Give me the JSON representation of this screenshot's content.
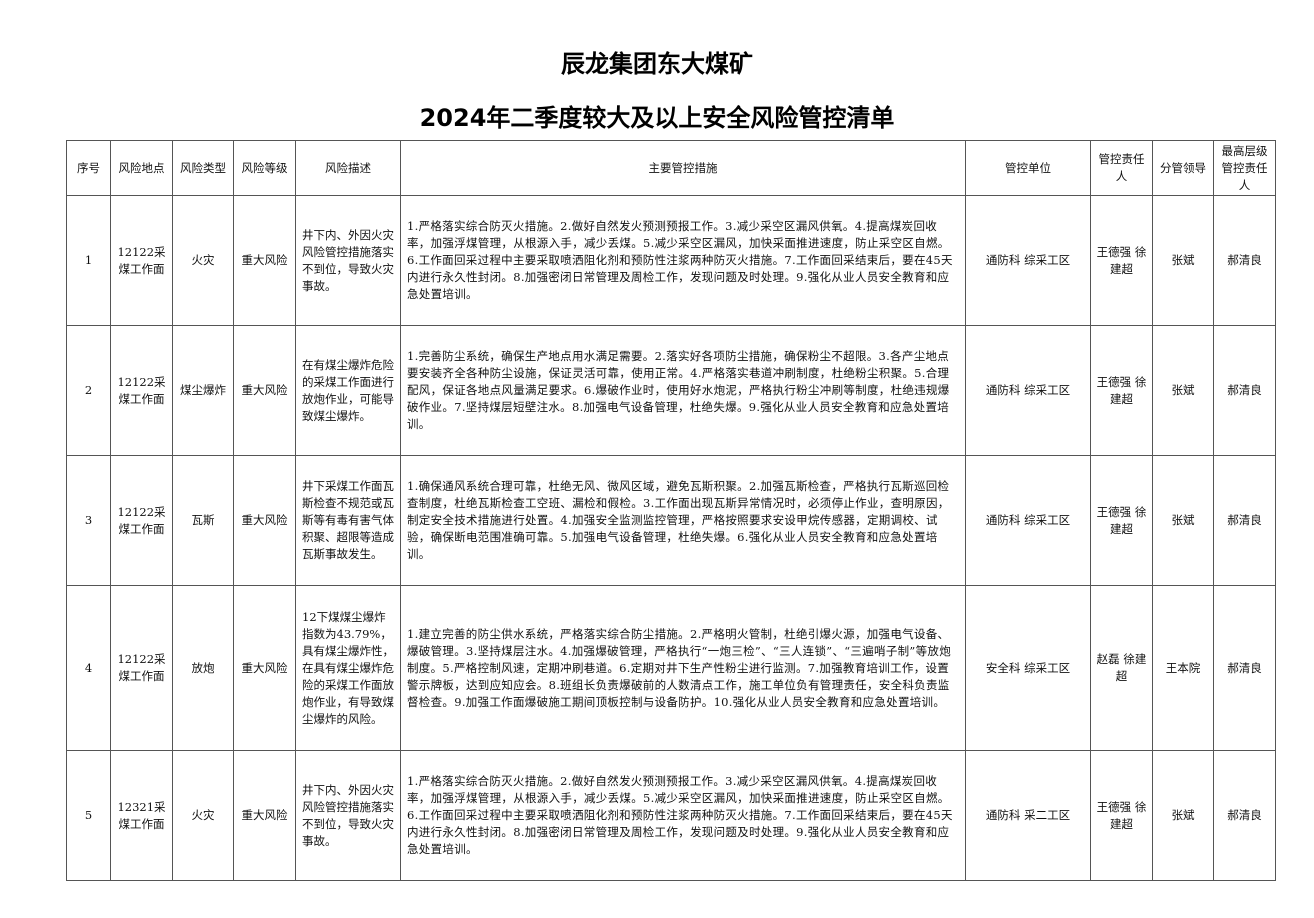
{
  "title_line1": "辰龙集团东大煤矿",
  "title_line2": "2024年二季度较大及以上安全风险管控清单",
  "headers": [
    "序号",
    "风险地点",
    "风险类型",
    "风险等级",
    "风险描述",
    "主要管控措施",
    "管控单位",
    "管控责任人",
    "分管领导",
    "最高层级管控责任人"
  ],
  "rows": [
    {
      "no": "1",
      "location": "12122采煤工作面",
      "type": "火灾",
      "level": "重大风险",
      "description": "井下内、外因火灾风险管控措施落实不到位，导致火灾事故。",
      "measures": "1.严格落实综合防灭火措施。2.做好自然发火预测预报工作。3.减少采空区漏风供氧。4.提高煤炭回收率，加强浮煤管理，从根源入手，减少丢煤。5.减少采空区漏风，加快采面推进速度，防止采空区自燃。6.工作面回采过程中主要采取喷洒阻化剂和预防性注浆两种防灭火措施。7.工作面回采结束后，要在45天内进行永久性封闭。8.加强密闭日常管理及周检工作，发现问题及时处理。9.强化从业人员安全教育和应急处置培训。",
      "unit": "通防科 综采工区",
      "responsible": "王德强 徐建超",
      "leader": "张斌",
      "top_responsible": "郝清良"
    },
    {
      "no": "2",
      "location": "12122采煤工作面",
      "type": "煤尘爆炸",
      "level": "重大风险",
      "description": "在有煤尘爆炸危险的采煤工作面进行放炮作业，可能导致煤尘爆炸。",
      "measures": "1.完善防尘系统，确保生产地点用水满足需要。2.落实好各项防尘措施，确保粉尘不超限。3.各产尘地点要安装齐全各种防尘设施，保证灵活可靠，使用正常。4.严格落实巷道冲刷制度，杜绝粉尘积聚。5.合理配风，保证各地点风量满足要求。6.爆破作业时，使用好水炮泥，严格执行粉尘冲刷等制度，杜绝违规爆破作业。7.坚持煤层短壁注水。8.加强电气设备管理，杜绝失爆。9.强化从业人员安全教育和应急处置培训。",
      "unit": "通防科 综采工区",
      "responsible": "王德强 徐建超",
      "leader": "张斌",
      "top_responsible": "郝清良"
    },
    {
      "no": "3",
      "location": "12122采煤工作面",
      "type": "瓦斯",
      "level": "重大风险",
      "description": "井下采煤工作面瓦斯检查不规范或瓦斯等有毒有害气体积聚、超限等造成瓦斯事故发生。",
      "measures": "1.确保通风系统合理可靠，杜绝无风、微风区域，避免瓦斯积聚。2.加强瓦斯检查，严格执行瓦斯巡回检查制度，杜绝瓦斯检查工空班、漏检和假检。3.工作面出现瓦斯异常情况时，必须停止作业，查明原因，制定安全技术措施进行处置。4.加强安全监测监控管理，严格按照要求安设甲烷传感器，定期调校、试验，确保断电范围准确可靠。5.加强电气设备管理，杜绝失爆。6.强化从业人员安全教育和应急处置培训。",
      "unit": "通防科 综采工区",
      "responsible": "王德强 徐建超",
      "leader": "张斌",
      "top_responsible": "郝清良"
    },
    {
      "no": "4",
      "location": "12122采煤工作面",
      "type": "放炮",
      "level": "重大风险",
      "description": "12下煤煤尘爆炸指数为43.79%，具有煤尘爆炸性，在具有煤尘爆炸危险的采煤工作面放炮作业，有导致煤尘爆炸的风险。",
      "measures": "1.建立完善的防尘供水系统，严格落实综合防尘措施。2.严格明火管制，杜绝引爆火源，加强电气设备、爆破管理。3.坚持煤层注水。4.加强爆破管理，严格执行“一炮三检”、“三人连锁”、“三遍哨子制”等放炮制度。5.严格控制风速，定期冲刷巷道。6.定期对井下生产性粉尘进行监测。7.加强教育培训工作，设置警示牌板，达到应知应会。8.班组长负责爆破前的人数清点工作，施工单位负有管理责任，安全科负责监督检查。9.加强工作面爆破施工期间顶板控制与设备防护。10.强化从业人员安全教育和应急处置培训。",
      "unit": "安全科 综采工区",
      "responsible": "赵磊 徐建超",
      "leader": "王本院",
      "top_responsible": "郝清良"
    },
    {
      "no": "5",
      "location": "12321采煤工作面",
      "type": "火灾",
      "level": "重大风险",
      "description": "井下内、外因火灾风险管控措施落实不到位，导致火灾事故。",
      "measures": "1.严格落实综合防灭火措施。2.做好自然发火预测预报工作。3.减少采空区漏风供氧。4.提高煤炭回收率，加强浮煤管理，从根源入手，减少丢煤。5.减少采空区漏风，加快采面推进速度，防止采空区自燃。6.工作面回采过程中主要采取喷洒阻化剂和预防性注浆两种防灭火措施。7.工作面回采结束后，要在45天内进行永久性封闭。8.加强密闭日常管理及周检工作，发现问题及时处理。9.强化从业人员安全教育和应急处置培训。",
      "unit": "通防科 采二工区",
      "responsible": "王德强 徐建超",
      "leader": "张斌",
      "top_responsible": "郝清良"
    }
  ]
}
